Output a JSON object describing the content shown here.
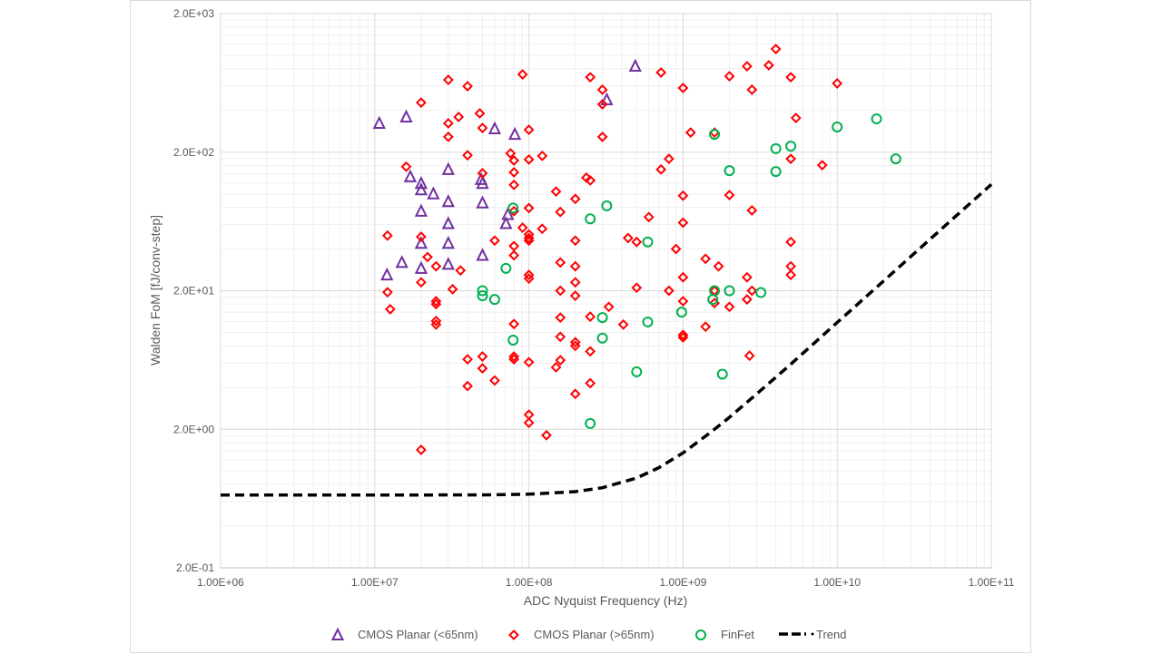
{
  "chart_data": {
    "type": "scatter",
    "xlabel": "ADC Nyquist Frequency (Hz)",
    "ylabel": "Walden FoM [fJ/conv-step]",
    "xscale": "log",
    "yscale": "log",
    "xlim": [
      1000000.0,
      100000000000.0
    ],
    "ylim": [
      0.2,
      2000
    ],
    "grid": true,
    "legend_position": "bottom",
    "x_ticks": [
      1000000.0,
      10000000.0,
      100000000.0,
      1000000000.0,
      10000000000.0,
      100000000000.0
    ],
    "x_tick_labels": [
      "1.00E+06",
      "1.00E+07",
      "1.00E+08",
      "1.00E+09",
      "1.00E+10",
      "1.00E+11"
    ],
    "y_ticks": [
      0.2,
      2,
      20,
      200,
      2000
    ],
    "y_tick_labels": [
      "2.0E-01",
      "2.0E+00",
      "2.0E+01",
      "2.0E+02",
      "2.0E+03"
    ],
    "series": [
      {
        "name": "CMOS Planar (<65nm)",
        "marker": "triangle",
        "color": "#7030A0",
        "points": [
          [
            10700000.0,
            323
          ],
          [
            16000000.0,
            359
          ],
          [
            490000000.0,
            834
          ],
          [
            320000000.0,
            478
          ],
          [
            60000000.0,
            295
          ],
          [
            81000000.0,
            269
          ],
          [
            30000000.0,
            150
          ],
          [
            17000000.0,
            133
          ],
          [
            20000000.0,
            119
          ],
          [
            20000000.0,
            107
          ],
          [
            24000000.0,
            100
          ],
          [
            30000000.0,
            88
          ],
          [
            49000000.0,
            127
          ],
          [
            50000000.0,
            119
          ],
          [
            50000000.0,
            86
          ],
          [
            73000000.0,
            71
          ],
          [
            71000000.0,
            61
          ],
          [
            20000000.0,
            75
          ],
          [
            30000000.0,
            61
          ],
          [
            20000000.0,
            44
          ],
          [
            30000000.0,
            44
          ],
          [
            50000000.0,
            36
          ],
          [
            15000000.0,
            32
          ],
          [
            20000000.0,
            29
          ],
          [
            30000000.0,
            31
          ],
          [
            12000000.0,
            26
          ]
        ]
      },
      {
        "name": "CMOS Planar (>65nm)",
        "marker": "diamond",
        "color": "#FF0000",
        "points": [
          [
            20000000.0,
            456
          ],
          [
            30000000.0,
            665
          ],
          [
            40000000.0,
            598
          ],
          [
            91000000.0,
            728
          ],
          [
            250000000.0,
            695
          ],
          [
            300000000.0,
            564
          ],
          [
            300000000.0,
            443
          ],
          [
            720000000.0,
            751
          ],
          [
            1000000000.0,
            581
          ],
          [
            2000000000.0,
            706
          ],
          [
            2600000000.0,
            834
          ],
          [
            2800000000.0,
            564
          ],
          [
            3600000000.0,
            847
          ],
          [
            4000000000.0,
            1110
          ],
          [
            5000000000.0,
            695
          ],
          [
            10000000000.0,
            627
          ],
          [
            5400000000.0,
            353
          ],
          [
            30000000.0,
            323
          ],
          [
            35000000.0,
            359
          ],
          [
            48000000.0,
            381
          ],
          [
            50000000.0,
            299
          ],
          [
            100000000.0,
            290
          ],
          [
            30000000.0,
            258
          ],
          [
            300000000.0,
            258
          ],
          [
            1120000000.0,
            277
          ],
          [
            1600000000.0,
            277
          ],
          [
            16000000.0,
            157
          ],
          [
            40000000.0,
            190
          ],
          [
            76000000.0,
            196
          ],
          [
            100000000.0,
            177
          ],
          [
            122000000.0,
            188
          ],
          [
            80000000.0,
            174
          ],
          [
            50000000.0,
            141
          ],
          [
            80000000.0,
            143
          ],
          [
            80000000.0,
            116
          ],
          [
            150000000.0,
            104
          ],
          [
            236000000.0,
            131
          ],
          [
            250000000.0,
            125
          ],
          [
            810000000.0,
            179
          ],
          [
            720000000.0,
            150
          ],
          [
            5000000000.0,
            179
          ],
          [
            8000000000.0,
            161
          ],
          [
            200000000.0,
            92
          ],
          [
            1000000000.0,
            97
          ],
          [
            2000000000.0,
            98
          ],
          [
            100000000.0,
            79
          ],
          [
            160000000.0,
            74
          ],
          [
            80000000.0,
            75
          ],
          [
            600000000.0,
            68
          ],
          [
            1000000000.0,
            62
          ],
          [
            2800000000.0,
            76
          ],
          [
            122000000.0,
            56
          ],
          [
            91000000.0,
            57
          ],
          [
            100000000.0,
            51
          ],
          [
            100000000.0,
            48
          ],
          [
            100000000.0,
            46
          ],
          [
            12100000.0,
            50
          ],
          [
            20000000.0,
            49
          ],
          [
            200000000.0,
            46
          ],
          [
            60000000.0,
            46
          ],
          [
            440000000.0,
            48
          ],
          [
            500000000.0,
            45
          ],
          [
            900000000.0,
            40
          ],
          [
            5000000000.0,
            45
          ],
          [
            80000000.0,
            42
          ],
          [
            22000000.0,
            35
          ],
          [
            25000000.0,
            30
          ],
          [
            36000000.0,
            28
          ],
          [
            80000000.0,
            36
          ],
          [
            160000000.0,
            32
          ],
          [
            200000000.0,
            30
          ],
          [
            1400000000.0,
            34
          ],
          [
            1700000000.0,
            30
          ],
          [
            100000000.0,
            26
          ],
          [
            100000000.0,
            24.5
          ],
          [
            20000000.0,
            23
          ],
          [
            200000000.0,
            23
          ],
          [
            32000000.0,
            20.5
          ],
          [
            12100000.0,
            19.5
          ],
          [
            160000000.0,
            20
          ],
          [
            500000000.0,
            21
          ],
          [
            810000000.0,
            20
          ],
          [
            1000000000.0,
            25
          ],
          [
            2600000000.0,
            25
          ],
          [
            5000000000.0,
            30
          ],
          [
            5000000000.0,
            26
          ],
          [
            200000000.0,
            18.4
          ],
          [
            330000000.0,
            15.3
          ],
          [
            1000000000.0,
            16.8
          ],
          [
            1600000000.0,
            20
          ],
          [
            1600000000.0,
            16.3
          ],
          [
            2000000000.0,
            15.3
          ],
          [
            2600000000.0,
            17.3
          ],
          [
            2800000000.0,
            20
          ],
          [
            12600000.0,
            14.7
          ],
          [
            25000000.0,
            16.8
          ],
          [
            25000000.0,
            16
          ],
          [
            25000000.0,
            12.1
          ],
          [
            25000000.0,
            11.4
          ],
          [
            160000000.0,
            12.8
          ],
          [
            250000000.0,
            13
          ],
          [
            410000000.0,
            11.4
          ],
          [
            80000000.0,
            11.5
          ],
          [
            160000000.0,
            9.3
          ],
          [
            200000000.0,
            8.5
          ],
          [
            200000000.0,
            8.0
          ],
          [
            160000000.0,
            6.3
          ],
          [
            150000000.0,
            5.6
          ],
          [
            250000000.0,
            7.3
          ],
          [
            1000000000.0,
            9.6
          ],
          [
            1000000000.0,
            9.2
          ],
          [
            80000000.0,
            6.7
          ],
          [
            80000000.0,
            6.4
          ],
          [
            40000000.0,
            6.4
          ],
          [
            50000000.0,
            6.7
          ],
          [
            50000000.0,
            5.5
          ],
          [
            60000000.0,
            4.5
          ],
          [
            100000000.0,
            6.1
          ],
          [
            40000000.0,
            4.1
          ],
          [
            200000000.0,
            3.6
          ],
          [
            250000000.0,
            4.3
          ],
          [
            100000000.0,
            2.55
          ],
          [
            100000000.0,
            2.23
          ],
          [
            130000000.0,
            1.81
          ],
          [
            20000000.0,
            1.42
          ],
          [
            2700000000.0,
            6.8
          ],
          [
            1400000000.0,
            11
          ]
        ]
      },
      {
        "name": "FinFet",
        "marker": "circle",
        "color": "#00B050",
        "points": [
          [
            1600000000.0,
            269
          ],
          [
            10000000000.0,
            304
          ],
          [
            18000000000.0,
            348
          ],
          [
            5000000000.0,
            221
          ],
          [
            4000000000.0,
            212
          ],
          [
            2000000000.0,
            147
          ],
          [
            4000000000.0,
            145
          ],
          [
            24000000000.0,
            179
          ],
          [
            79000000.0,
            79
          ],
          [
            320000000.0,
            82
          ],
          [
            250000000.0,
            66
          ],
          [
            590000000.0,
            45
          ],
          [
            71000000.0,
            29
          ],
          [
            50000000.0,
            20
          ],
          [
            50000000.0,
            18.4
          ],
          [
            60000000.0,
            17.3
          ],
          [
            3200000000.0,
            19.4
          ],
          [
            2000000000.0,
            20
          ],
          [
            1560000000.0,
            17.3
          ],
          [
            1600000000.0,
            20
          ],
          [
            980000000.0,
            14
          ],
          [
            300000000.0,
            12.8
          ],
          [
            590000000.0,
            11.9
          ],
          [
            79000000.0,
            8.8
          ],
          [
            300000000.0,
            9.1
          ],
          [
            500000000.0,
            5.2
          ],
          [
            1800000000.0,
            5.0
          ],
          [
            250000000.0,
            2.2
          ]
        ]
      },
      {
        "name": "Trend",
        "marker": "dashed-line",
        "color": "#000000",
        "points": [
          [
            1000000.0,
            0.67
          ],
          [
            10000000.0,
            0.67
          ],
          [
            50000000.0,
            0.672
          ],
          [
            100000000.0,
            0.68
          ],
          [
            200000000.0,
            0.71
          ],
          [
            300000000.0,
            0.757
          ],
          [
            500000000.0,
            0.89
          ],
          [
            700000000.0,
            1.06
          ],
          [
            1000000000.0,
            1.35
          ],
          [
            1500000000.0,
            1.89
          ],
          [
            2000000000.0,
            2.44
          ],
          [
            3000000000.0,
            3.59
          ],
          [
            5000000000.0,
            5.9
          ],
          [
            10000000000.0,
            11.8
          ],
          [
            20000000000.0,
            23.5
          ],
          [
            50000000000.0,
            58.8
          ],
          [
            100000000000.0,
            117
          ]
        ]
      }
    ]
  }
}
